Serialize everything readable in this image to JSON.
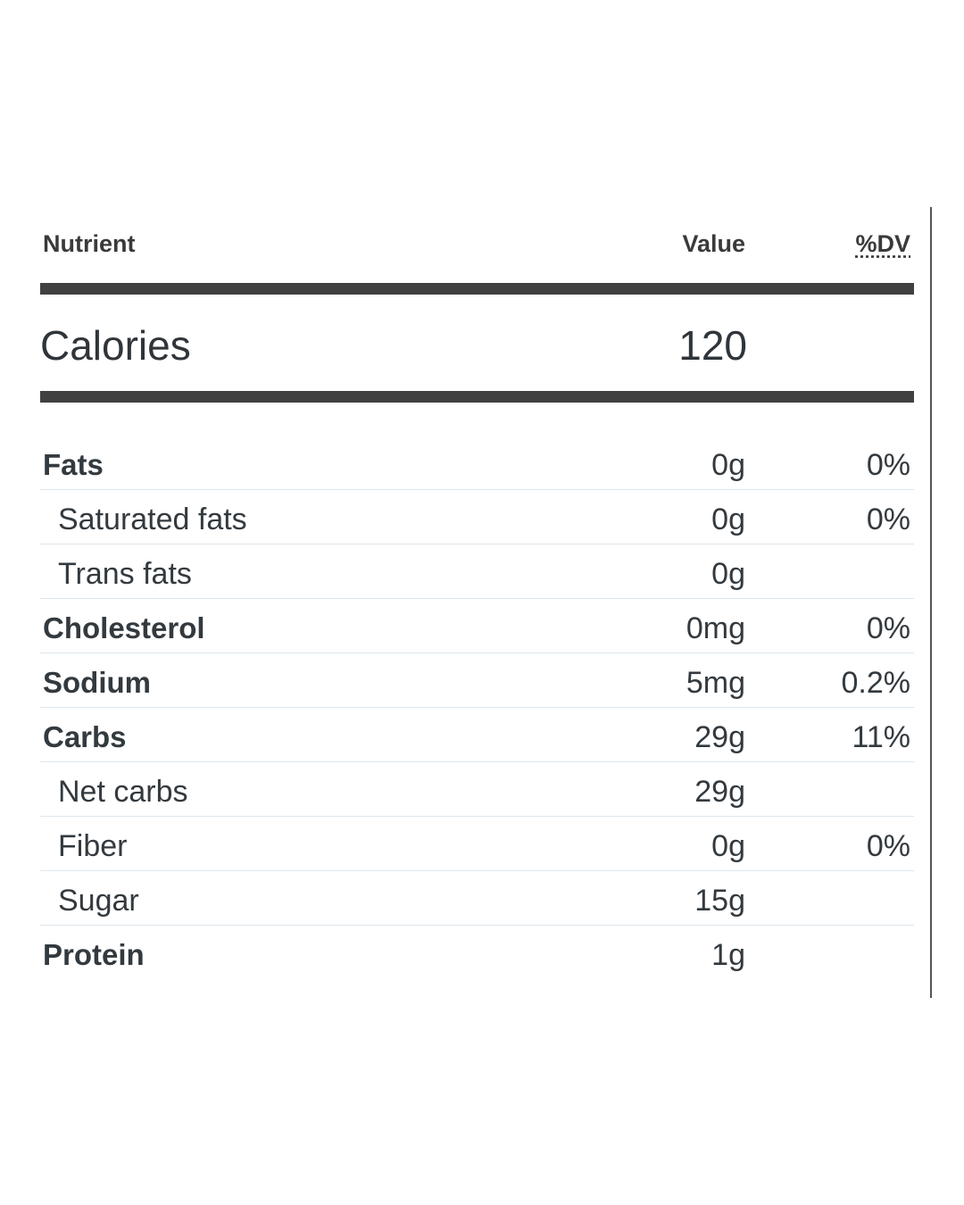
{
  "header": {
    "nutrient": "Nutrient",
    "value": "Value",
    "dv": "%DV"
  },
  "calories": {
    "label": "Calories",
    "value": "120"
  },
  "rows": [
    {
      "name": "Fats",
      "value": "0g",
      "dv": "0%",
      "bold": true
    },
    {
      "name": "Saturated fats",
      "value": "0g",
      "dv": "0%",
      "bold": false
    },
    {
      "name": "Trans fats",
      "value": "0g",
      "dv": "",
      "bold": false
    },
    {
      "name": "Cholesterol",
      "value": "0mg",
      "dv": "0%",
      "bold": true
    },
    {
      "name": "Sodium",
      "value": "5mg",
      "dv": "0.2%",
      "bold": true
    },
    {
      "name": "Carbs",
      "value": "29g",
      "dv": "11%",
      "bold": true
    },
    {
      "name": "Net carbs",
      "value": "29g",
      "dv": "",
      "bold": false
    },
    {
      "name": "Fiber",
      "value": "0g",
      "dv": "0%",
      "bold": false
    },
    {
      "name": "Sugar",
      "value": "15g",
      "dv": "",
      "bold": false
    },
    {
      "name": "Protein",
      "value": "1g",
      "dv": "",
      "bold": true
    }
  ]
}
